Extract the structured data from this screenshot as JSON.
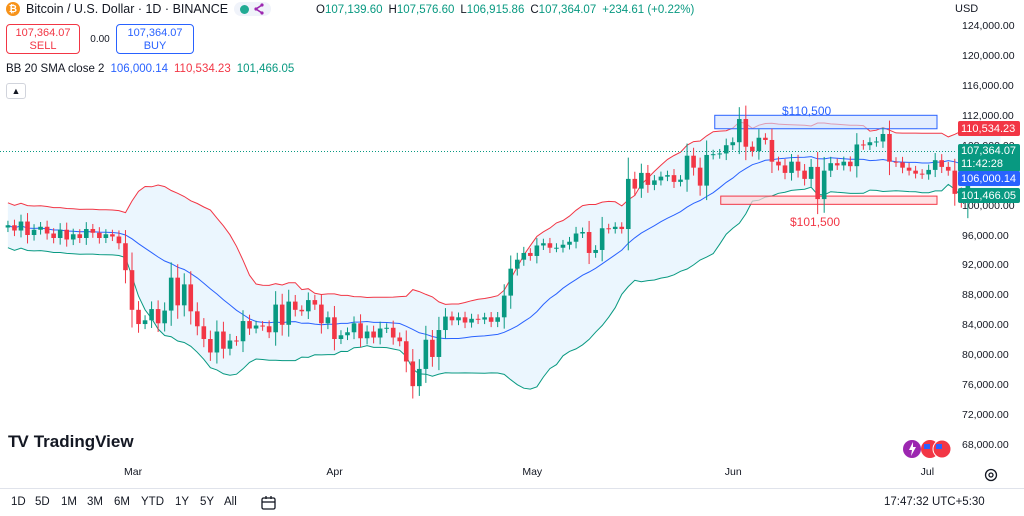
{
  "header": {
    "title": "Bitcoin / U.S. Dollar · 1D · BINANCE",
    "ohlc": {
      "o_label": "O",
      "o": "107,139.60",
      "h_label": "H",
      "h": "107,576.60",
      "l_label": "L",
      "l": "106,915.86",
      "c_label": "C",
      "c": "107,364.07",
      "change": "+234.61 (+0.22%)"
    }
  },
  "trade": {
    "sell_price": "107,364.07",
    "sell_label": "SELL",
    "spread": "0.00",
    "buy_price": "107,364.07",
    "buy_label": "BUY"
  },
  "indicator": {
    "label": "BB 20 SMA close 2",
    "basis": "106,000.14",
    "upper": "110,534.23",
    "lower": "101,466.05"
  },
  "currency": "USD",
  "price_tags": {
    "upper": "110,534.23",
    "close": "107,364.07",
    "countdown": "11:42:28",
    "basis": "106,000.14",
    "lower": "101,466.05"
  },
  "colors": {
    "up": "#089981",
    "down": "#f23645",
    "basis": "#2962ff",
    "upper": "#f23645",
    "lower": "#089981",
    "band_fill": "#e3f2fd"
  },
  "logo": {
    "text": "TradingView"
  },
  "bottom": {
    "ranges": [
      "1D",
      "5D",
      "1M",
      "3M",
      "6M",
      "YTD",
      "1Y",
      "5Y",
      "All"
    ],
    "clock": "17:47:32 UTC+5:30"
  },
  "chart_data": {
    "type": "candlestick",
    "ylim": [
      68000,
      124000
    ],
    "y_ticks": [
      "124,000.00",
      "120,000.00",
      "116,000.00",
      "112,000.00",
      "108,000.00",
      "104,000.00",
      "100,000.00",
      "96,000.00",
      "92,000.00",
      "88,000.00",
      "84,000.00",
      "80,000.00",
      "76,000.00",
      "72,000.00",
      "68,000.00"
    ],
    "y_tick_values": [
      124000,
      120000,
      116000,
      112000,
      108000,
      104000,
      100000,
      96000,
      92000,
      88000,
      84000,
      80000,
      76000,
      72000,
      68000
    ],
    "x_labels": [
      "Mar",
      "Apr",
      "May",
      "Jun",
      "Jul"
    ],
    "x_label_days": [
      0,
      31,
      61,
      92,
      122
    ],
    "day_offset_start": -19,
    "close_series": [
      97500,
      96800,
      98000,
      96200,
      96900,
      97300,
      96400,
      95800,
      96900,
      95600,
      96300,
      95800,
      97000,
      96500,
      95800,
      96300,
      96000,
      95100,
      91500,
      86200,
      84300,
      84800,
      86300,
      84400,
      86100,
      90500,
      86800,
      89600,
      86000,
      84000,
      82300,
      80500,
      83300,
      81000,
      82100,
      82000,
      84700,
      83700,
      84100,
      84000,
      83200,
      86900,
      84200,
      87300,
      86200,
      86000,
      87500,
      86900,
      84400,
      85200,
      82300,
      82800,
      83200,
      84400,
      82400,
      83300,
      82500,
      83700,
      83800,
      82500,
      82000,
      79300,
      76000,
      78300,
      82200,
      79900,
      83500,
      85300,
      84800,
      85200,
      84500,
      85000,
      84900,
      85200,
      84600,
      85200,
      88100,
      91700,
      92900,
      93800,
      93400,
      94800,
      95100,
      94500,
      94500,
      94900,
      95300,
      96400,
      96600,
      93800,
      94200,
      97100,
      97000,
      97300,
      97000,
      103700,
      102400,
      104500,
      102900,
      103500,
      104000,
      104200,
      103300,
      103600,
      106800,
      105200,
      102800,
      106900,
      107000,
      107100,
      108200,
      108600,
      111700,
      108000,
      107400,
      109200,
      108900,
      106000,
      105500,
      104500,
      106000,
      104800,
      103700,
      105300,
      101000,
      104800,
      105800,
      105500,
      106000,
      105400,
      108300,
      108200,
      108600,
      108700,
      109700,
      106000,
      105900,
      105200,
      104800,
      104400,
      104300,
      104900,
      106200,
      105300,
      104800,
      101700,
      100700,
      105700,
      105600,
      106200,
      107100,
      107400,
      107360
    ]
  },
  "annotations": {
    "upper_zone": "$110,500",
    "lower_zone": "$101,500"
  }
}
